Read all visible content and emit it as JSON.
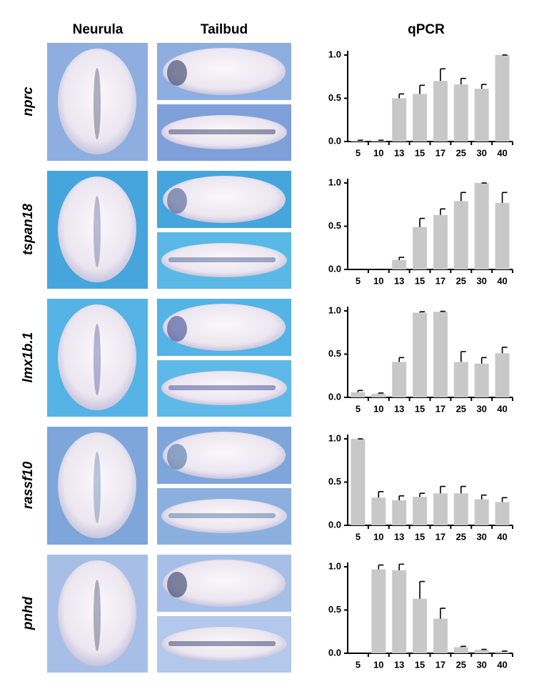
{
  "headers": [
    "Neurula",
    "Tailbud",
    "qPCR"
  ],
  "genes": [
    "nprc",
    "tspan18",
    "lmx1b.1",
    "rassf10",
    "pnhd"
  ],
  "chart_data": [
    {
      "type": "bar",
      "categories": [
        "5",
        "10",
        "13",
        "15",
        "17",
        "25",
        "30",
        "40"
      ],
      "values": [
        0.01,
        0.01,
        0.5,
        0.55,
        0.7,
        0.66,
        0.61,
        1.0
      ],
      "errors": [
        0.005,
        0.005,
        0.05,
        0.1,
        0.14,
        0.07,
        0.05,
        0
      ],
      "color": "#c8c8c8",
      "ylim": [
        0,
        1.05
      ],
      "yticks": [
        {
          "value": 0,
          "label": "0.0"
        },
        {
          "value": 0.5,
          "label": "0.5"
        },
        {
          "value": 1,
          "label": "1.0"
        }
      ]
    },
    {
      "type": "bar",
      "categories": [
        "5",
        "10",
        "13",
        "15",
        "17",
        "25",
        "30",
        "40"
      ],
      "values": [
        0,
        0,
        0.11,
        0.49,
        0.63,
        0.79,
        1.0,
        0.77
      ],
      "errors": [
        0,
        0,
        0.03,
        0.1,
        0.07,
        0.1,
        0,
        0.12
      ],
      "color": "#c8c8c8",
      "ylim": [
        0,
        1.05
      ],
      "yticks": [
        {
          "value": 0,
          "label": "0.0"
        },
        {
          "value": 0.5,
          "label": "0.5"
        },
        {
          "value": 1,
          "label": "1.0"
        }
      ]
    },
    {
      "type": "bar",
      "categories": [
        "5",
        "10",
        "13",
        "15",
        "17",
        "25",
        "30",
        "40"
      ],
      "values": [
        0.06,
        0.04,
        0.41,
        0.98,
        0.99,
        0.41,
        0.39,
        0.51
      ],
      "errors": [
        0.02,
        0.01,
        0.05,
        0.01,
        0.005,
        0.12,
        0.07,
        0.07
      ],
      "color": "#c8c8c8",
      "ylim": [
        0,
        1.05
      ],
      "yticks": [
        {
          "value": 0,
          "label": "0.0"
        },
        {
          "value": 0.5,
          "label": "0.5"
        },
        {
          "value": 1,
          "label": "1.0"
        }
      ]
    },
    {
      "type": "bar",
      "categories": [
        "5",
        "10",
        "13",
        "15",
        "17",
        "25",
        "30",
        "40"
      ],
      "values": [
        1.0,
        0.32,
        0.29,
        0.33,
        0.37,
        0.37,
        0.3,
        0.27
      ],
      "errors": [
        0,
        0.07,
        0.05,
        0.04,
        0.08,
        0.08,
        0.05,
        0.05
      ],
      "color": "#c8c8c8",
      "ylim": [
        0,
        1.05
      ],
      "yticks": [
        {
          "value": 0,
          "label": "0.0"
        },
        {
          "value": 0.5,
          "label": "0.5"
        },
        {
          "value": 1,
          "label": "1.0"
        }
      ]
    },
    {
      "type": "bar",
      "categories": [
        "5",
        "10",
        "13",
        "15",
        "17",
        "25",
        "30",
        "40"
      ],
      "values": [
        0,
        0.97,
        0.96,
        0.63,
        0.4,
        0.07,
        0.04,
        0.02
      ],
      "errors": [
        0,
        0.05,
        0.07,
        0.2,
        0.12,
        0.01,
        0.005,
        0.005
      ],
      "color": "#c8c8c8",
      "ylim": [
        0,
        1.05
      ],
      "yticks": [
        {
          "value": 0,
          "label": "0.0"
        },
        {
          "value": 0.5,
          "label": "0.5"
        },
        {
          "value": 1,
          "label": "1.0"
        }
      ]
    }
  ]
}
